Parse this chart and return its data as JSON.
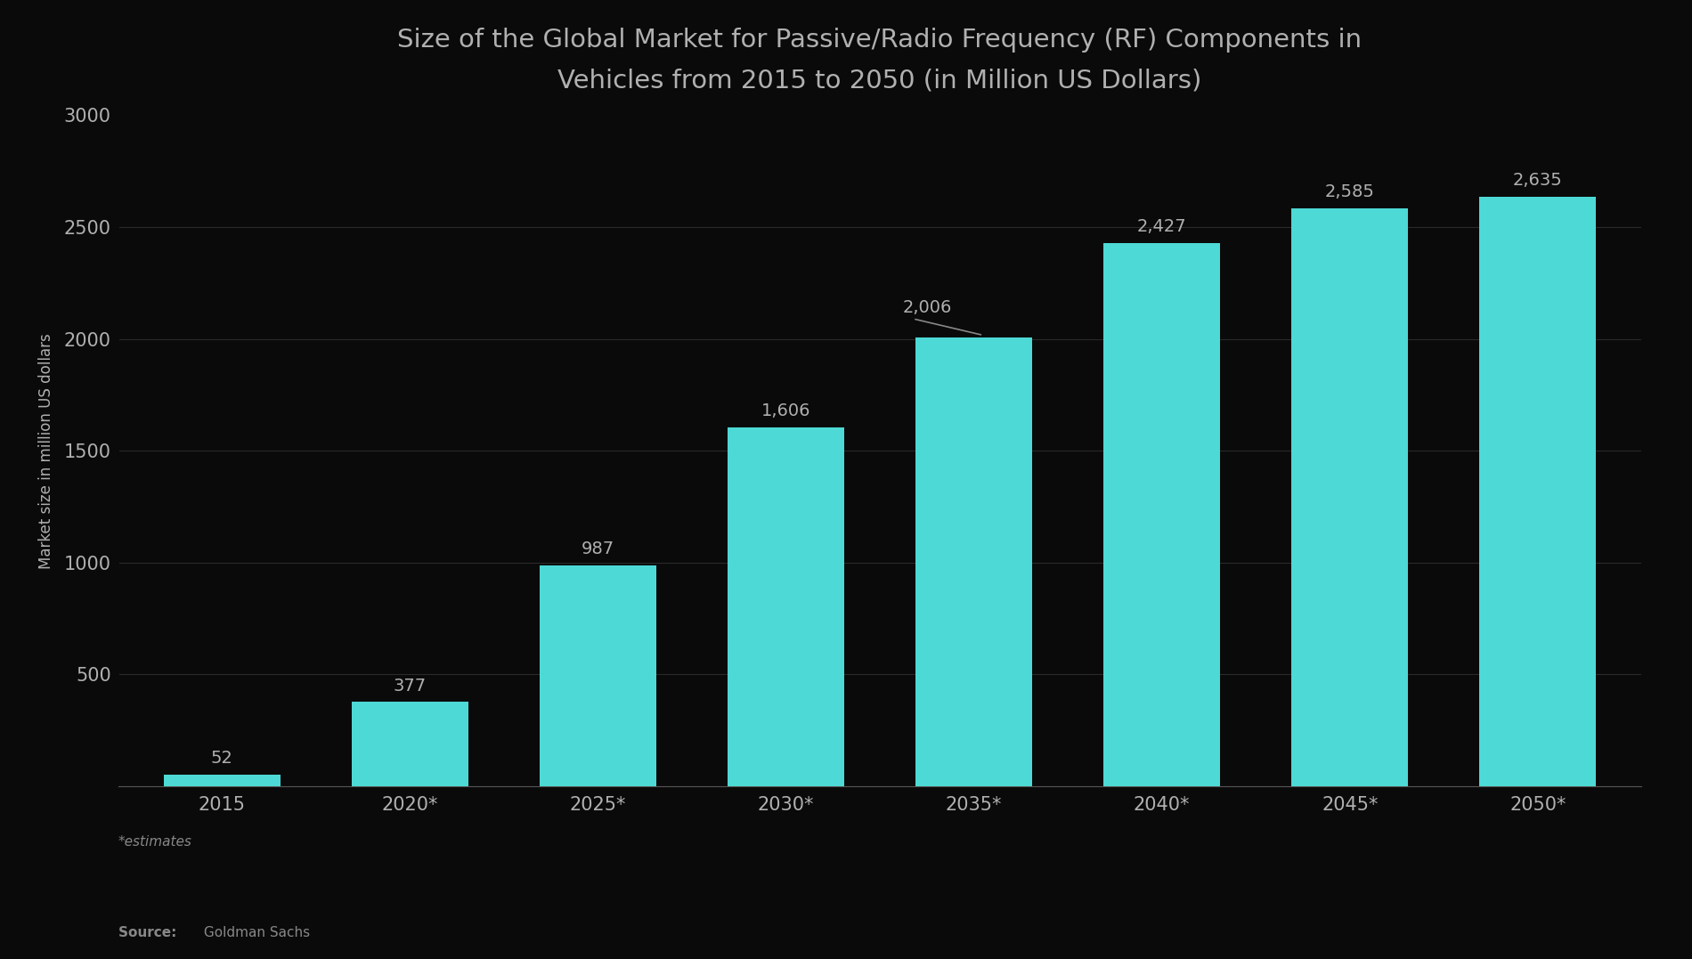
{
  "title": "Size of the Global Market for Passive/Radio Frequency (RF) Components in\nVehicles from 2015 to 2050 (in Million US Dollars)",
  "categories": [
    "2015",
    "2020*",
    "2025*",
    "2030*",
    "2035*",
    "2040*",
    "2045*",
    "2050*"
  ],
  "values": [
    52,
    377,
    987,
    1606,
    2006,
    2427,
    2585,
    2635
  ],
  "bar_color": "#4DD9D5",
  "background_color": "#0a0a0a",
  "text_color": "#b0b0b0",
  "ylabel": "Market size in million US dollars",
  "ylim": [
    0,
    3000
  ],
  "yticks": [
    0,
    500,
    1000,
    1500,
    2000,
    2500,
    3000
  ],
  "title_fontsize": 21,
  "label_fontsize": 12,
  "tick_fontsize": 15,
  "annotation_fontsize": 14,
  "footer_bar_color": "#2a9db5",
  "estimates_text": "*estimates",
  "source_label": "Source: ",
  "source_text": " Goldman Sachs",
  "annotation_line_color": "#888888",
  "grid_color": "#2a2a2a",
  "spine_color": "#555555"
}
